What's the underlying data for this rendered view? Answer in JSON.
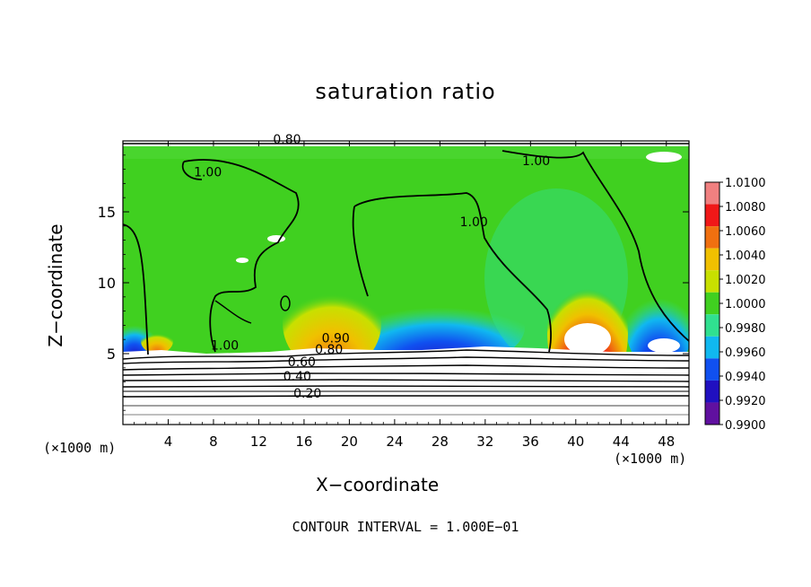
{
  "chart_data": {
    "type": "heatmap",
    "title": "saturation ratio",
    "xlabel": "X−coordinate",
    "ylabel": "Z−coordinate",
    "x_unit_left": "(×1000 m)",
    "x_unit_right": "(×1000 m)",
    "note": "CONTOUR INTERVAL = 1.000E−01",
    "xlim": [
      0,
      50
    ],
    "ylim": [
      0,
      20
    ],
    "x_ticks": [
      "4",
      "8",
      "12",
      "16",
      "20",
      "24",
      "28",
      "32",
      "36",
      "40",
      "44",
      "48"
    ],
    "x_tick_values": [
      4,
      8,
      12,
      16,
      20,
      24,
      28,
      32,
      36,
      40,
      44,
      48
    ],
    "y_ticks": [
      "5",
      "10",
      "15"
    ],
    "y_tick_values": [
      5,
      10,
      15
    ],
    "colorbar": {
      "labels": [
        "1.0100",
        "1.0080",
        "1.0060",
        "1.0040",
        "1.0020",
        "1.0000",
        "0.9980",
        "0.9960",
        "0.9940",
        "0.9920",
        "0.9900"
      ],
      "colors": [
        "#f08080",
        "#f01818",
        "#f07010",
        "#f0c000",
        "#c8e000",
        "#40d020",
        "#30e090",
        "#10b8f0",
        "#1050f0",
        "#2010c0",
        "#6010a0"
      ]
    },
    "contour_labels": [
      {
        "text": "0.80",
        "x": 14.5,
        "y": 19.8
      },
      {
        "text": "1.00",
        "x": 7.5,
        "y": 17.5
      },
      {
        "text": "1.00",
        "x": 36.5,
        "y": 18.3
      },
      {
        "text": "1.00",
        "x": 31.0,
        "y": 14.0
      },
      {
        "text": "1.00",
        "x": 9.0,
        "y": 5.3
      },
      {
        "text": "0.90",
        "x": 18.8,
        "y": 5.8
      },
      {
        "text": "0.80",
        "x": 18.2,
        "y": 5.0
      },
      {
        "text": "0.60",
        "x": 15.8,
        "y": 4.1
      },
      {
        "text": "0.40",
        "x": 15.4,
        "y": 3.1
      },
      {
        "text": "0.20",
        "x": 16.3,
        "y": 1.9
      }
    ],
    "background_color": "#40d020"
  }
}
